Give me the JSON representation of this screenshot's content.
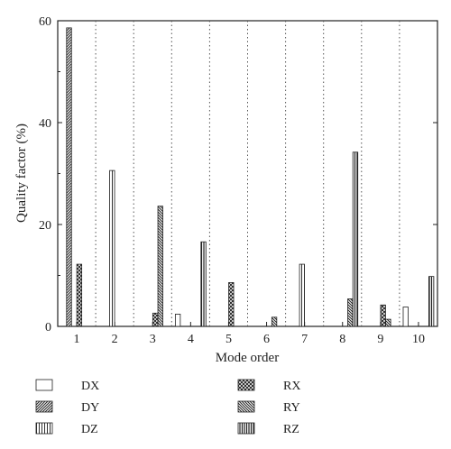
{
  "chart_data": {
    "type": "bar",
    "categories": [
      "1",
      "2",
      "3",
      "4",
      "5",
      "6",
      "7",
      "8",
      "9",
      "10"
    ],
    "xlabel": "Mode order",
    "ylabel": "Quality factor (%)",
    "ylim": [
      0,
      60
    ],
    "yticks": [
      "0",
      "20",
      "40",
      "60"
    ],
    "grid": "vertical dotted separators between modes",
    "legend_position": "bottom",
    "series": [
      {
        "name": "DX",
        "pattern": "empty",
        "values": [
          0,
          0,
          0,
          2.4,
          0,
          0,
          0,
          0,
          0,
          3.8
        ]
      },
      {
        "name": "DY",
        "pattern": "diagonal",
        "values": [
          58.6,
          0,
          0,
          0,
          0,
          0,
          0,
          0,
          0,
          0
        ]
      },
      {
        "name": "DZ",
        "pattern": "vertical",
        "values": [
          0,
          30.6,
          0,
          0,
          0,
          0,
          12.2,
          0,
          0,
          0
        ]
      },
      {
        "name": "RX",
        "pattern": "crosshatch",
        "values": [
          12.2,
          0,
          2.6,
          0,
          8.6,
          0,
          0,
          0,
          4.2,
          0
        ]
      },
      {
        "name": "RY",
        "pattern": "backslash",
        "values": [
          0,
          0,
          23.6,
          0,
          0,
          1.8,
          0,
          5.4,
          1.4,
          0
        ]
      },
      {
        "name": "RZ",
        "pattern": "vbars",
        "values": [
          0,
          0,
          0,
          16.6,
          0,
          0,
          0,
          34.2,
          0,
          9.8
        ]
      }
    ]
  }
}
